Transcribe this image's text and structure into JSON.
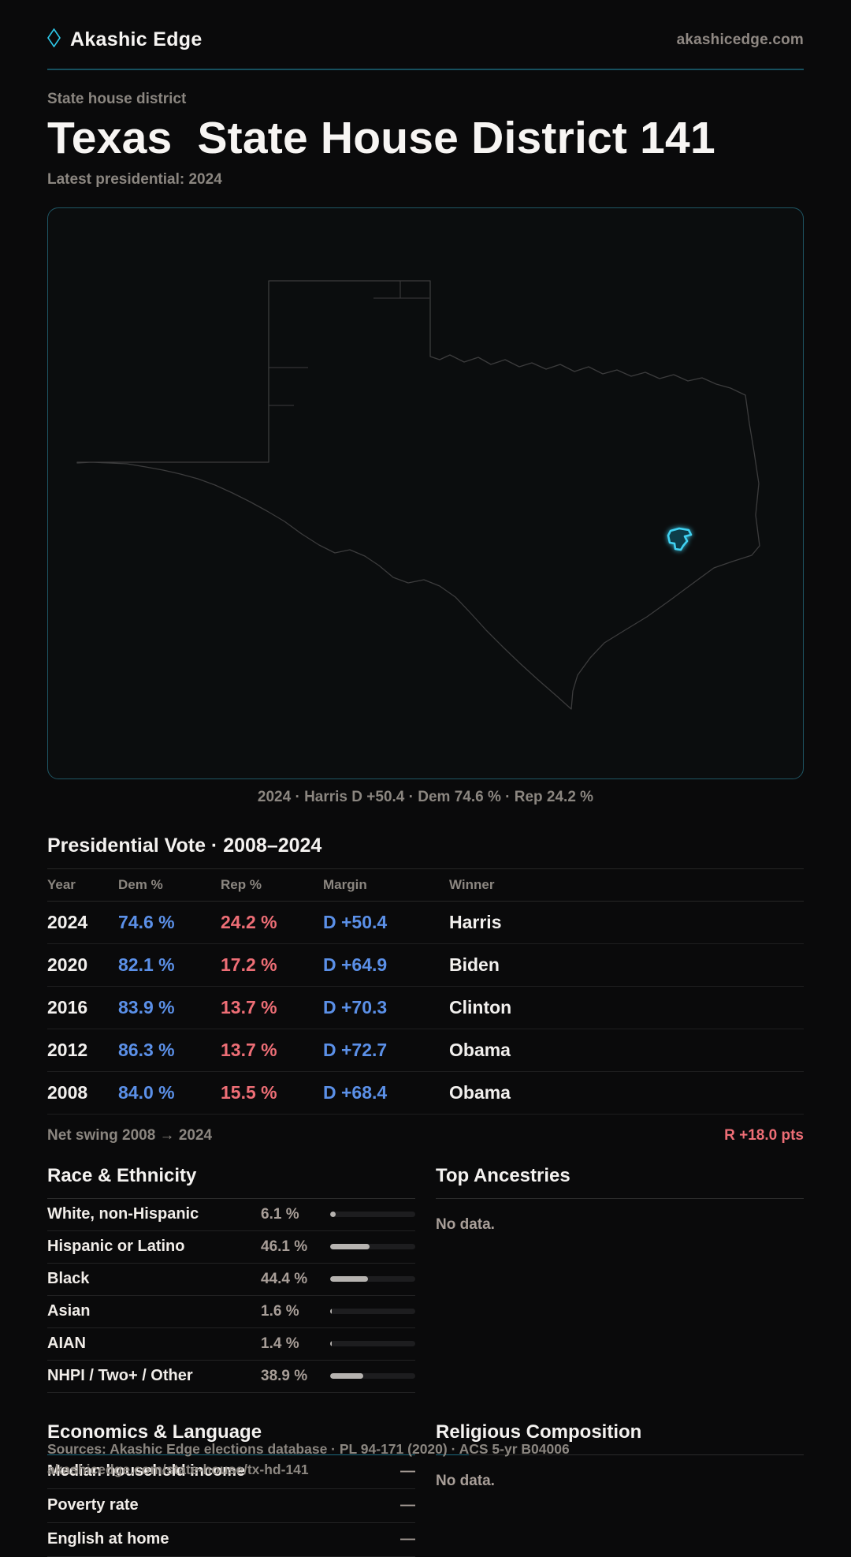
{
  "colors": {
    "accent_cyan": "#3fd2f2",
    "dem_blue": "#5b90e8",
    "rep_red": "#ee6e76",
    "teal_divider": "#1d6b80",
    "background": "#0a0a0b"
  },
  "header": {
    "logo": "Akashic Edge",
    "domain": "akashicedge.com",
    "diamond_icon": "diamond-outline"
  },
  "hero": {
    "eyebrow": "State house district",
    "title": "Texas  State House District 141",
    "subtitle": "Latest presidential: 2024"
  },
  "map": {
    "caption": "2024 · Harris D +50.4 · Dem 74.6 % · Rep 24.2 %"
  },
  "presidential": {
    "title": "Presidential Vote · 2008–2024",
    "columns": {
      "year": "Year",
      "dem": "Dem %",
      "rep": "Rep %",
      "margin": "Margin",
      "winner": "Winner"
    },
    "rows": [
      {
        "year": "2024",
        "dem": "74.6 %",
        "rep": "24.2 %",
        "margin": "D +50.4",
        "winner": "Harris"
      },
      {
        "year": "2020",
        "dem": "82.1 %",
        "rep": "17.2 %",
        "margin": "D +64.9",
        "winner": "Biden"
      },
      {
        "year": "2016",
        "dem": "83.9 %",
        "rep": "13.7 %",
        "margin": "D +70.3",
        "winner": "Clinton"
      },
      {
        "year": "2012",
        "dem": "86.3 %",
        "rep": "13.7 %",
        "margin": "D +72.7",
        "winner": "Obama"
      },
      {
        "year": "2008",
        "dem": "84.0 %",
        "rep": "15.5 %",
        "margin": "D +68.4",
        "winner": "Obama"
      }
    ],
    "net_swing_label": "Net swing 2008 → 2024",
    "net_swing_value": "R +18.0 pts"
  },
  "race": {
    "title": "Race & Ethnicity",
    "rows": [
      {
        "label": "White, non-Hispanic",
        "value": "6.1 %",
        "pct": 6.1
      },
      {
        "label": "Hispanic or Latino",
        "value": "46.1 %",
        "pct": 46.1
      },
      {
        "label": "Black",
        "value": "44.4 %",
        "pct": 44.4
      },
      {
        "label": "Asian",
        "value": "1.6 %",
        "pct": 1.6
      },
      {
        "label": "AIAN",
        "value": "1.4 %",
        "pct": 1.4
      },
      {
        "label": "NHPI / Two+ / Other",
        "value": "38.9 %",
        "pct": 38.9
      }
    ]
  },
  "ancestries": {
    "title": "Top Ancestries",
    "empty": "No data."
  },
  "economics": {
    "title": "Economics & Language",
    "rows": [
      {
        "label": "Median household income",
        "value": "—"
      },
      {
        "label": "Poverty rate",
        "value": "—"
      },
      {
        "label": "English at home",
        "value": "—"
      }
    ]
  },
  "religion": {
    "title": "Religious Composition",
    "empty": "No data."
  },
  "footer": {
    "source": "Sources: Akashic Edge elections database · PL 94-171 (2020) · ACS 5-yr B04006",
    "url": "akashicedge.com/state-house/tx-hd-141"
  }
}
